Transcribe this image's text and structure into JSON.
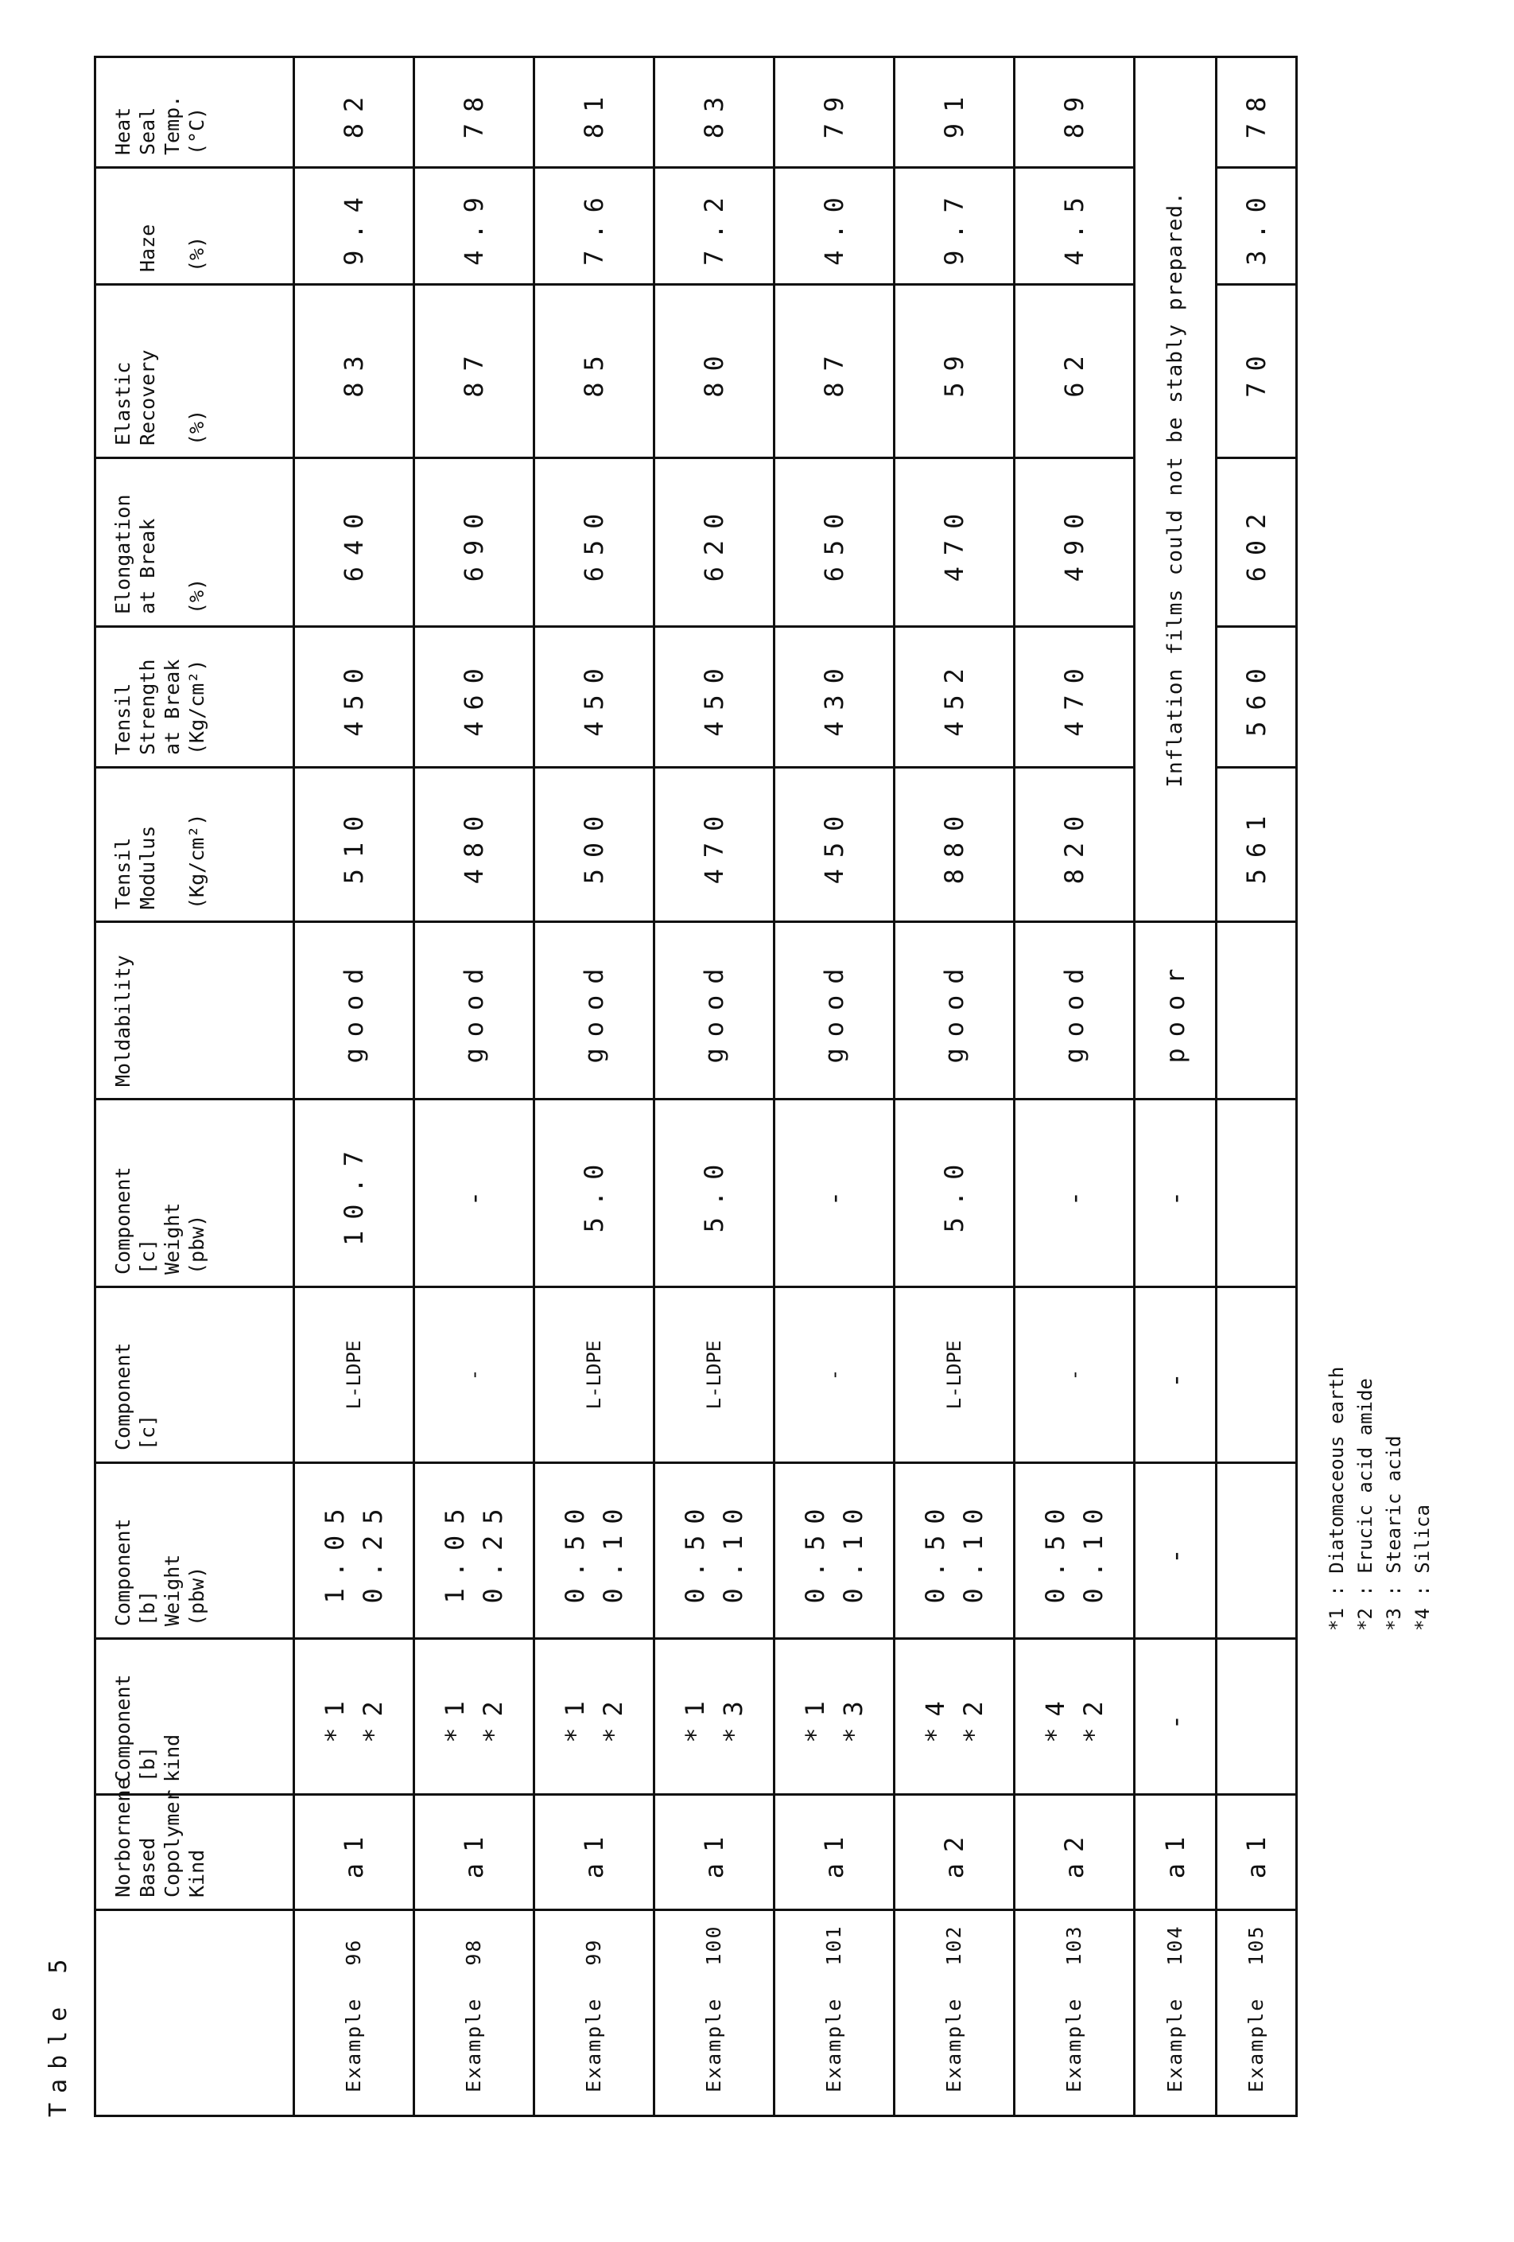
{
  "title": "Table 5",
  "headers": [
    "",
    "Norbornene\nBased\nCopolymer\nKind",
    "Component\n[b]\nkind",
    "Component\n[b]\nWeight\n    (pbw)",
    "Component\n[c]",
    "Component\n[c]\nWeight\n    (pbw)",
    "Moldability",
    "Tensil\nModulus\n\n(Kg/cm²)",
    "Tensil\nStrength\nat Break\n(Kg/cm²)",
    "Elongation\nat Break\n\n   (%)",
    "Elastic\nRecovery\n\n   (%)",
    "\nHaze\n\n (%)",
    "Heat\nSeal\nTemp.\n(°C)"
  ],
  "rows": [
    {
      "label": "Example",
      "num": "96",
      "kind": "a1",
      "b_kind": "*1\n*2",
      "b_weight": "1.05\n0.25",
      "c": "L-LDPE",
      "c_weight": "10.7",
      "moldability": "good",
      "modulus": "510",
      "strength": "450",
      "elongation": "640",
      "elastic": "83",
      "haze": "9.4",
      "heat_seal": "82"
    },
    {
      "label": "Example",
      "num": "98",
      "kind": "a1",
      "b_kind": "*1\n*2",
      "b_weight": "1.05\n0.25",
      "c": "-",
      "c_weight": "-",
      "moldability": "good",
      "modulus": "480",
      "strength": "460",
      "elongation": "690",
      "elastic": "87",
      "haze": "4.9",
      "heat_seal": "78"
    },
    {
      "label": "Example",
      "num": "99",
      "kind": "a1",
      "b_kind": "*1\n*2",
      "b_weight": "0.50\n0.10",
      "c": "L-LDPE",
      "c_weight": "5.0",
      "moldability": "good",
      "modulus": "500",
      "strength": "450",
      "elongation": "650",
      "elastic": "85",
      "haze": "7.6",
      "heat_seal": "81"
    },
    {
      "label": "Example",
      "num": "100",
      "kind": "a1",
      "b_kind": "*1\n*3",
      "b_weight": "0.50\n0.10",
      "c": "L-LDPE",
      "c_weight": "5.0",
      "moldability": "good",
      "modulus": "470",
      "strength": "450",
      "elongation": "620",
      "elastic": "80",
      "haze": "7.2",
      "heat_seal": "83"
    },
    {
      "label": "Example",
      "num": "101",
      "kind": "a1",
      "b_kind": "*1\n*3",
      "b_weight": "0.50\n0.10",
      "c": "-",
      "c_weight": "-",
      "moldability": "good",
      "modulus": "450",
      "strength": "430",
      "elongation": "650",
      "elastic": "87",
      "haze": "4.0",
      "heat_seal": "79"
    },
    {
      "label": "Example",
      "num": "102",
      "kind": "a2",
      "b_kind": "*4\n*2",
      "b_weight": "0.50\n0.10",
      "c": "L-LDPE",
      "c_weight": "5.0",
      "moldability": "good",
      "modulus": "880",
      "strength": "452",
      "elongation": "470",
      "elastic": "59",
      "haze": "9.7",
      "heat_seal": "91"
    },
    {
      "label": "Example",
      "num": "103",
      "kind": "a2",
      "b_kind": "*4\n*2",
      "b_weight": "0.50\n0.10",
      "c": "-",
      "c_weight": "-",
      "moldability": "good",
      "modulus": "820",
      "strength": "470",
      "elongation": "490",
      "elastic": "62",
      "haze": "4.5",
      "heat_seal": "89"
    }
  ],
  "row104": {
    "label": "Example",
    "num": "104",
    "kind": "a1",
    "b_kind": "-",
    "b_weight": "-",
    "c": "-",
    "c_weight": "-",
    "moldability": "poor",
    "note": "Inflation films could not be stably prepared."
  },
  "row105": {
    "label": "Example",
    "num": "105",
    "kind": "a1",
    "modulus": "561",
    "strength": "560",
    "elongation": "602",
    "elastic": "70",
    "haze": "3.0",
    "heat_seal": "78"
  },
  "footnotes": [
    "*1 : Diatomaceous earth",
    "*2 : Erucic acid amide",
    "*3 : Stearic acid",
    "*4 : Silica"
  ]
}
